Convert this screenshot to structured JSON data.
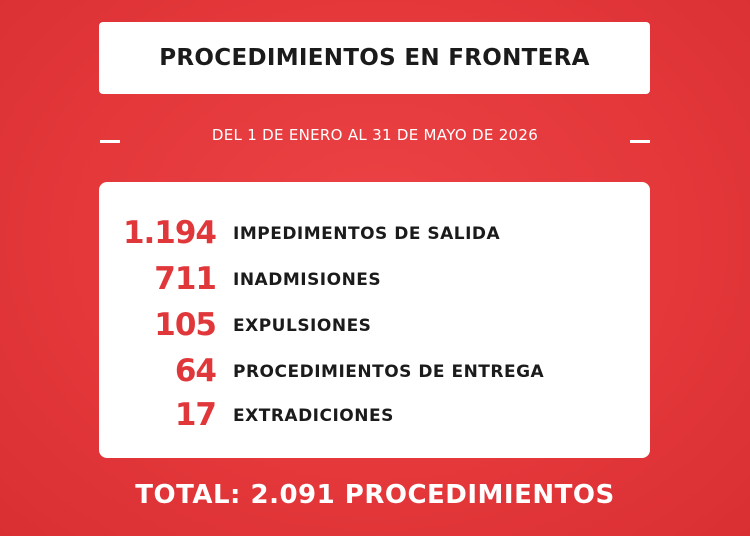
{
  "header": {
    "title": "PROCEDIMIENTOS EN FRONTERA",
    "subtitle": "DEL 1 DE ENERO AL 31 DE MAYO DE 2026"
  },
  "items": [
    {
      "number": "1.194",
      "label": "IMPEDIMENTOS DE SALIDA"
    },
    {
      "number": "711",
      "label": "INADMISIONES"
    },
    {
      "number": "105",
      "label": "EXPULSIONES"
    },
    {
      "number": "64",
      "label": "PROCEDIMIENTOS DE ENTREGA"
    },
    {
      "number": "17",
      "label": "EXTRADICIONES"
    }
  ],
  "footer": {
    "total": "TOTAL: 2.091 PROCEDIMIENTOS"
  }
}
